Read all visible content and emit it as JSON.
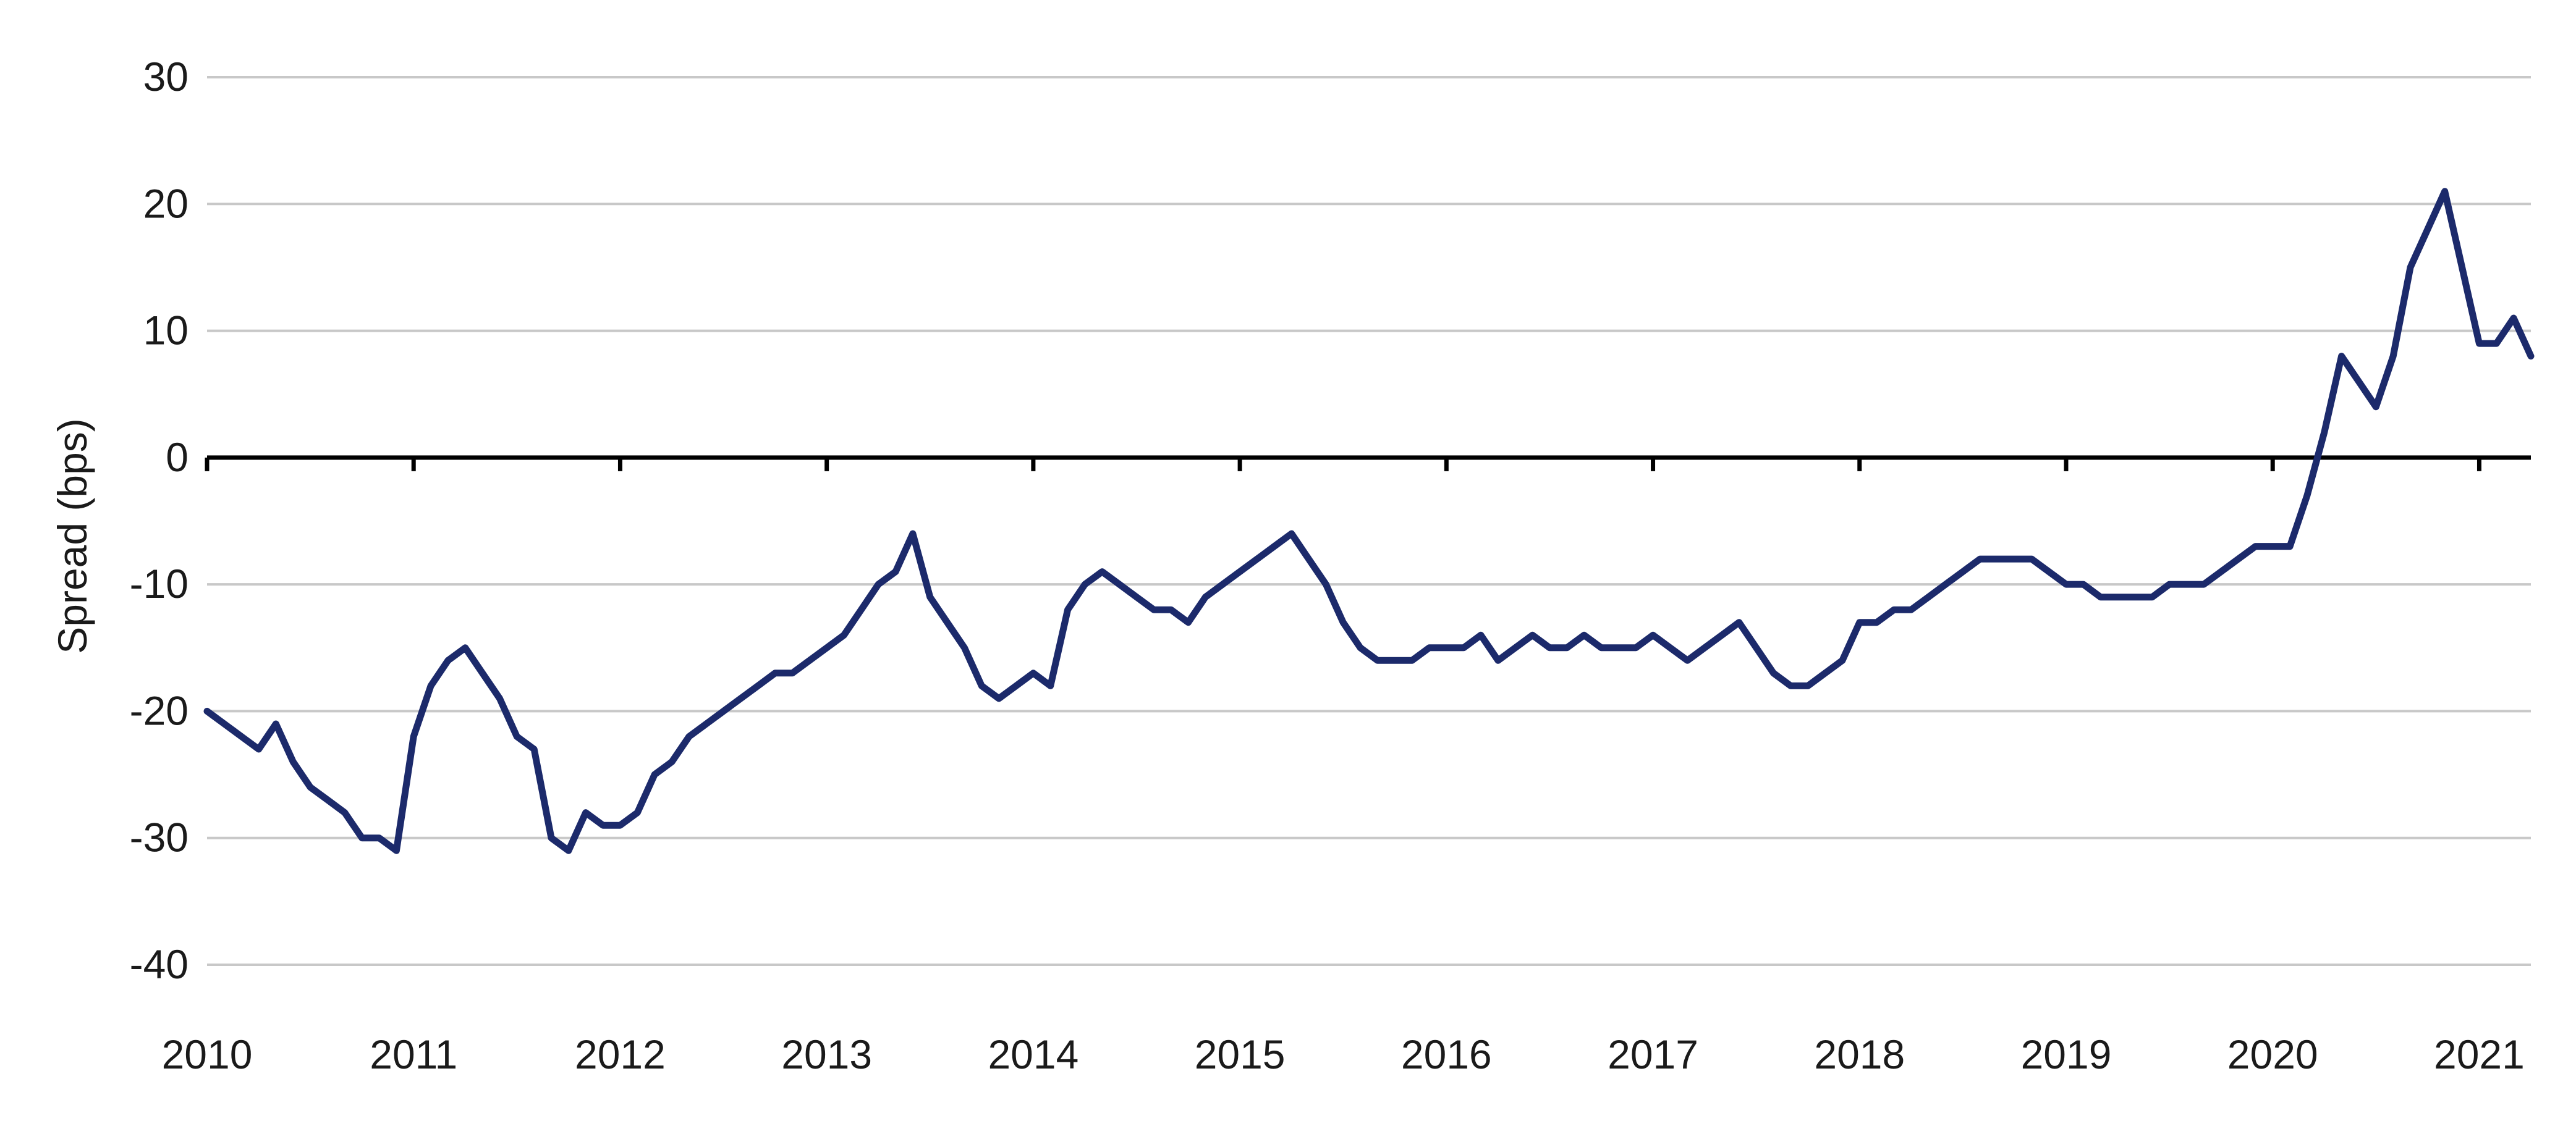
{
  "chart_data": {
    "type": "line",
    "title": "",
    "xlabel": "",
    "ylabel": "Spread (bps)",
    "ylim": [
      -40,
      30
    ],
    "xlim": [
      "2010-01",
      "2021-04"
    ],
    "grid": true,
    "legend": "none",
    "y_ticks": [
      "30",
      "20",
      "10",
      "0",
      "-10",
      "-20",
      "-30",
      "-40"
    ],
    "x_ticks": [
      "2010",
      "2011",
      "2012",
      "2013",
      "2014",
      "2015",
      "2016",
      "2017",
      "2018",
      "2019",
      "2020",
      "2021"
    ],
    "colors": {
      "line": "#1c2a6b",
      "grid": "#c8c8c8",
      "zero": "#000000"
    },
    "series": [
      {
        "x": [
          "2010-01",
          "2010-02",
          "2010-03",
          "2010-04",
          "2010-05",
          "2010-06",
          "2010-07",
          "2010-08",
          "2010-09",
          "2010-10",
          "2010-11",
          "2010-12",
          "2011-01",
          "2011-02",
          "2011-03",
          "2011-04",
          "2011-05",
          "2011-06",
          "2011-07",
          "2011-08",
          "2011-09",
          "2011-10",
          "2011-11",
          "2011-12",
          "2012-01",
          "2012-02",
          "2012-03",
          "2012-04",
          "2012-05",
          "2012-06",
          "2012-07",
          "2012-08",
          "2012-09",
          "2012-10",
          "2012-11",
          "2012-12",
          "2013-01",
          "2013-02",
          "2013-03",
          "2013-04",
          "2013-05",
          "2013-06",
          "2013-07",
          "2013-08",
          "2013-09",
          "2013-10",
          "2013-11",
          "2013-12",
          "2014-01",
          "2014-02",
          "2014-03",
          "2014-04",
          "2014-05",
          "2014-06",
          "2014-07",
          "2014-08",
          "2014-09",
          "2014-10",
          "2014-11",
          "2014-12",
          "2015-01",
          "2015-02",
          "2015-03",
          "2015-04",
          "2015-05",
          "2015-06",
          "2015-07",
          "2015-08",
          "2015-09",
          "2015-10",
          "2015-11",
          "2015-12",
          "2016-01",
          "2016-02",
          "2016-03",
          "2016-04",
          "2016-05",
          "2016-06",
          "2016-07",
          "2016-08",
          "2016-09",
          "2016-10",
          "2016-11",
          "2016-12",
          "2017-01",
          "2017-02",
          "2017-03",
          "2017-04",
          "2017-05",
          "2017-06",
          "2017-07",
          "2017-08",
          "2017-09",
          "2017-10",
          "2017-11",
          "2017-12",
          "2018-01",
          "2018-02",
          "2018-03",
          "2018-04",
          "2018-05",
          "2018-06",
          "2018-07",
          "2018-08",
          "2018-09",
          "2018-10",
          "2018-11",
          "2018-12",
          "2019-01",
          "2019-02",
          "2019-03",
          "2019-04",
          "2019-05",
          "2019-06",
          "2019-07",
          "2019-08",
          "2019-09",
          "2019-10",
          "2019-11",
          "2019-12",
          "2020-01",
          "2020-02",
          "2020-03",
          "2020-04",
          "2020-05",
          "2020-06",
          "2020-07",
          "2020-08",
          "2020-09",
          "2020-10",
          "2020-11",
          "2020-12",
          "2021-01",
          "2021-02",
          "2021-03",
          "2021-04"
        ],
        "values": [
          -20,
          -21,
          -22,
          -23,
          -21,
          -24,
          -26,
          -27,
          -28,
          -30,
          -30,
          -31,
          -22,
          -18,
          -16,
          -15,
          -17,
          -19,
          -22,
          -23,
          -30,
          -31,
          -28,
          -29,
          -29,
          -28,
          -25,
          -24,
          -22,
          -21,
          -20,
          -19,
          -18,
          -17,
          -17,
          -16,
          -15,
          -14,
          -12,
          -10,
          -9,
          -6,
          -11,
          -13,
          -15,
          -18,
          -19,
          -18,
          -17,
          -18,
          -12,
          -10,
          -9,
          -10,
          -11,
          -12,
          -12,
          -13,
          -11,
          -10,
          -9,
          -8,
          -7,
          -6,
          -8,
          -10,
          -13,
          -15,
          -16,
          -16,
          -16,
          -15,
          -15,
          -15,
          -14,
          -16,
          -15,
          -14,
          -15,
          -15,
          -14,
          -15,
          -15,
          -15,
          -14,
          -15,
          -16,
          -15,
          -14,
          -13,
          -15,
          -17,
          -18,
          -18,
          -17,
          -16,
          -13,
          -13,
          -12,
          -12,
          -11,
          -10,
          -9,
          -8,
          -8,
          -8,
          -8,
          -9,
          -10,
          -10,
          -11,
          -11,
          -11,
          -11,
          -10,
          -10,
          -10,
          -9,
          -8,
          -7,
          -7,
          -7,
          -3,
          2,
          8,
          6,
          4,
          8,
          15,
          18,
          21,
          15,
          9,
          9,
          11,
          8
        ]
      }
    ]
  }
}
